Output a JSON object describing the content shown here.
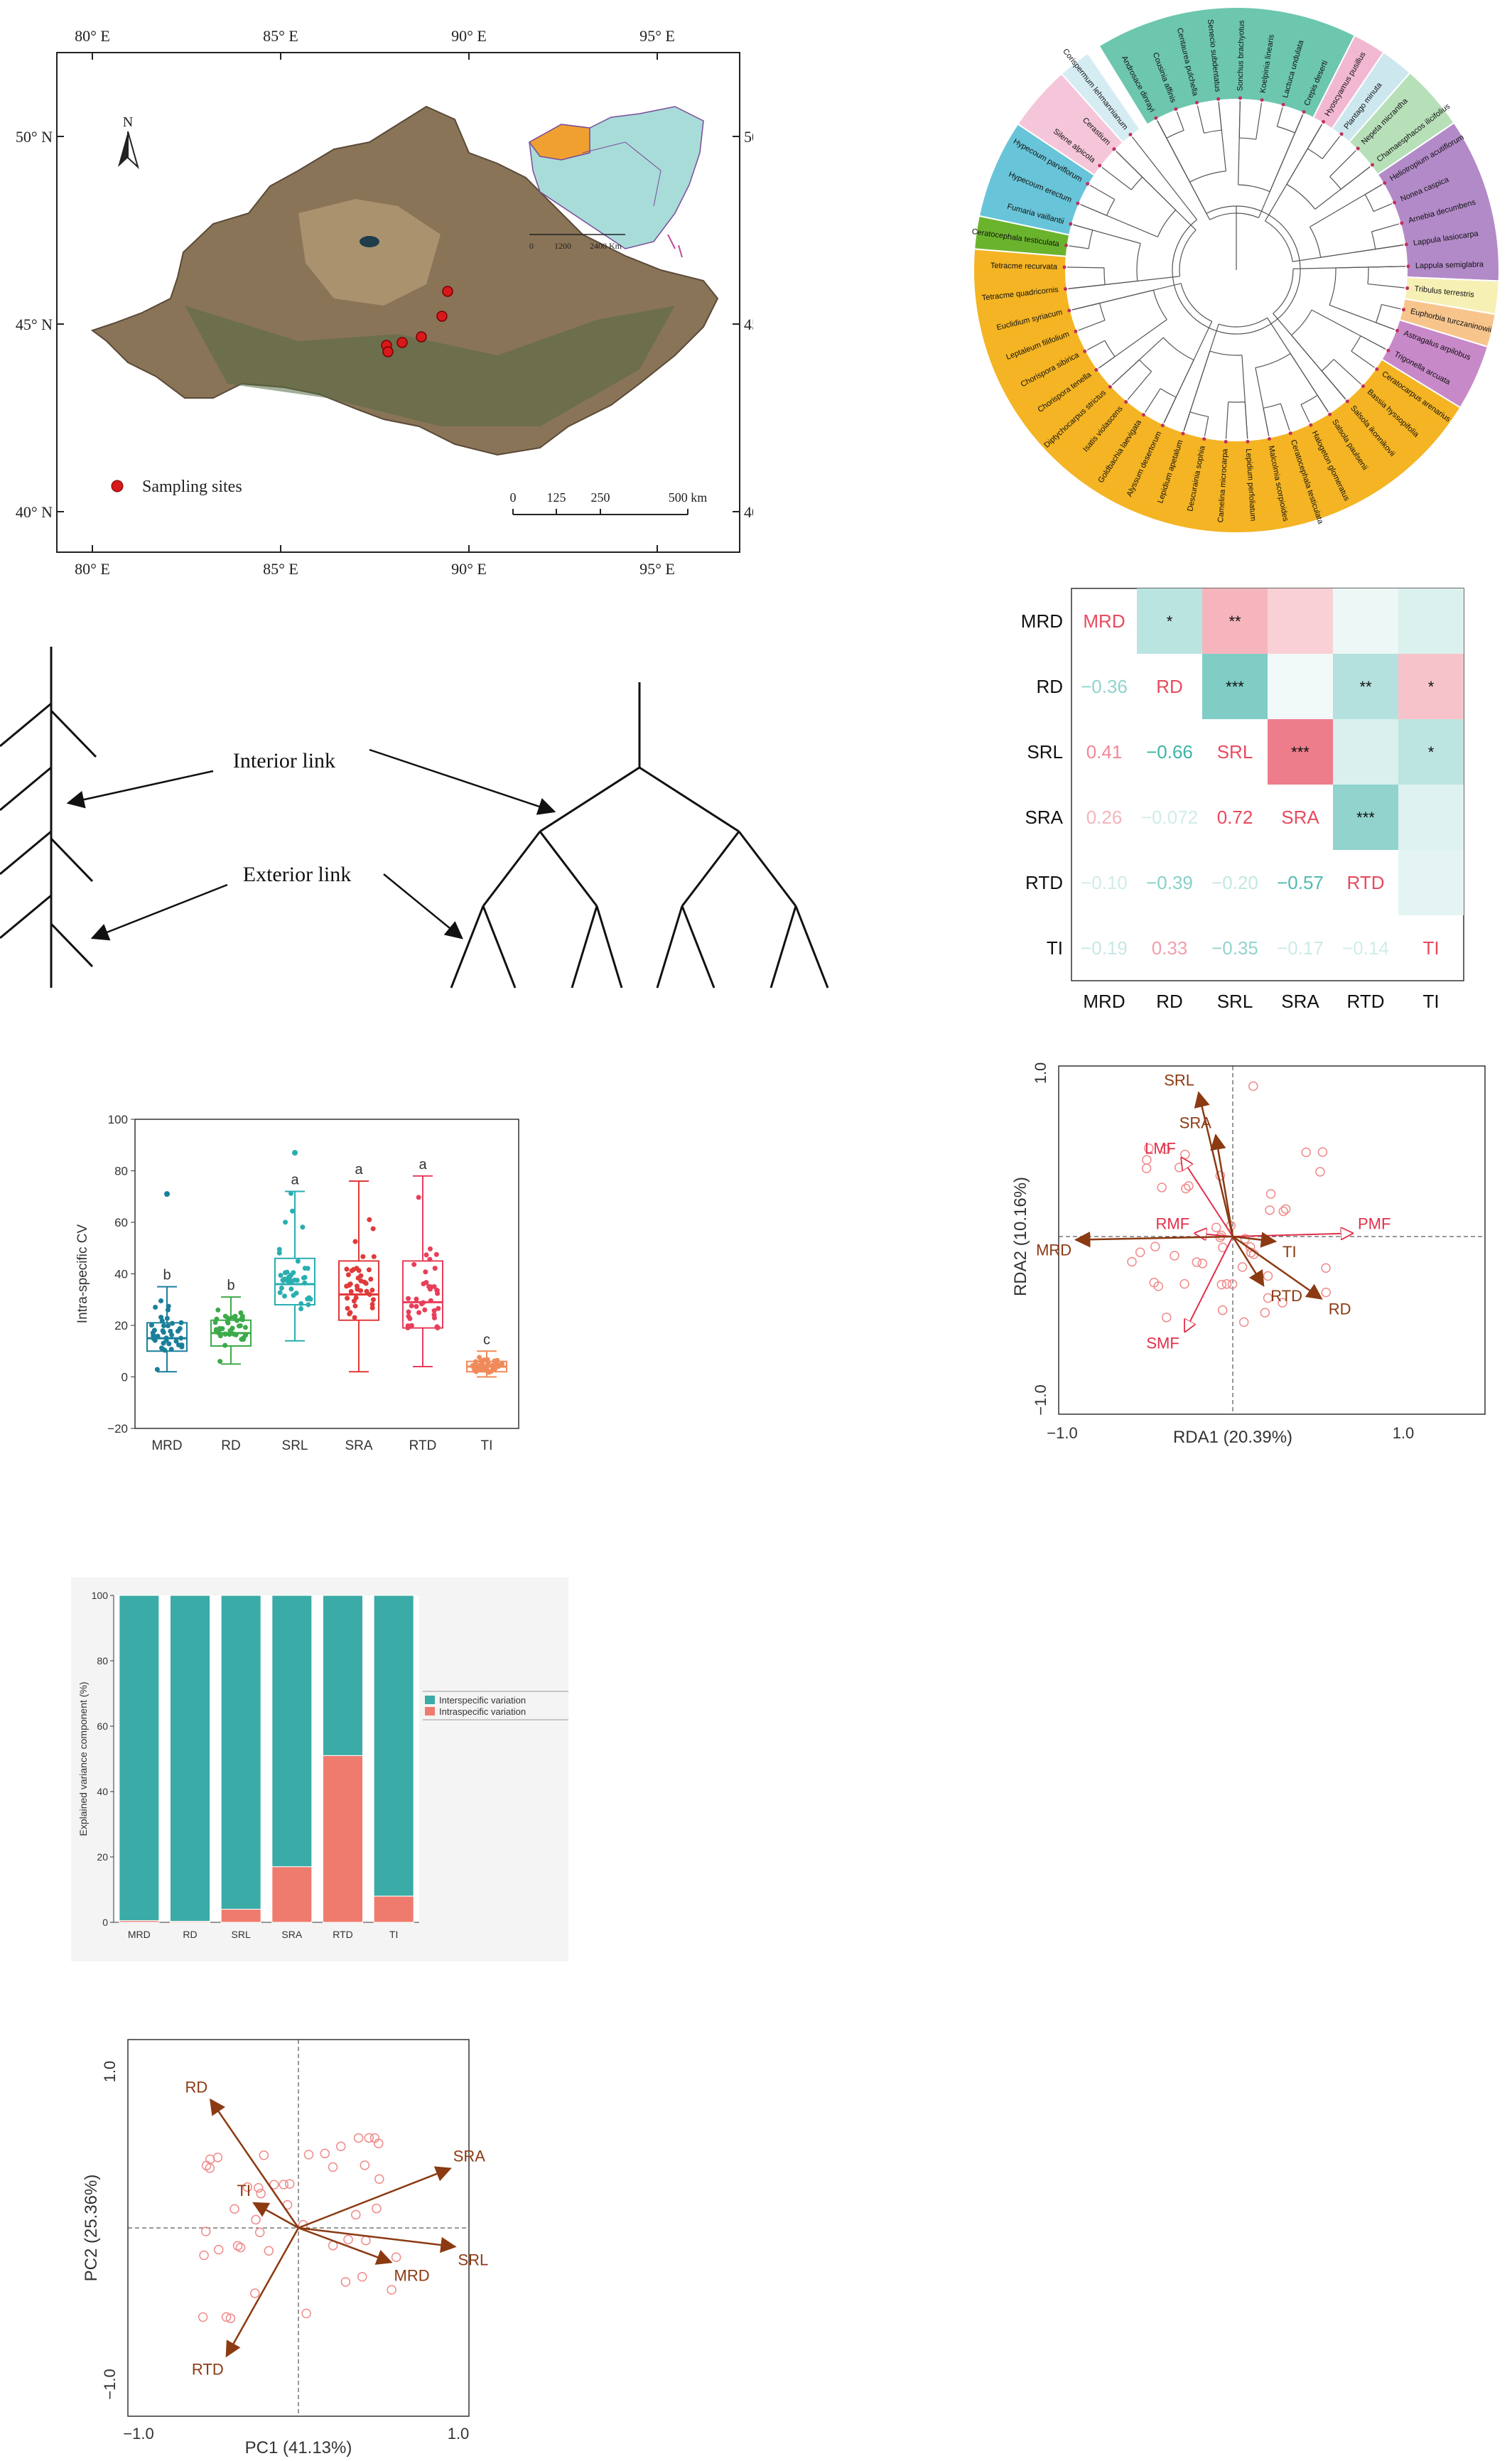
{
  "map": {
    "lon_labels": [
      "80° E",
      "85° E",
      "90° E",
      "95° E"
    ],
    "lat_labels": [
      "50° N",
      "45° N",
      "40° N"
    ],
    "north": "N",
    "legend": "Sampling sites",
    "scale_ticks": [
      "0",
      "125",
      "250",
      "500 km"
    ],
    "inset_scale": [
      "0",
      "1200",
      "2400 Km"
    ],
    "colors": {
      "frame": "#222222",
      "site": "#d7191c",
      "terrain": "#8a7458",
      "inset_region": "#f0a030",
      "inset_land": "#a8dcd8"
    }
  },
  "tree": {
    "groups": [
      {
        "color": "#6cc7ae",
        "species": [
          "Androsace dinrayi",
          "Cousinia affinis",
          "Centaurea pulchella",
          "Senecio subdentatus",
          "Sonchus brachyotus",
          "Koelpinia linearis",
          "Lactuca undulata",
          "Crepis deserti"
        ]
      },
      {
        "color": "#f2b8d2",
        "species": [
          "Hyoscyamus pusillus"
        ]
      },
      {
        "color": "#cde7ee",
        "species": [
          "Plantago minuta"
        ]
      },
      {
        "color": "#b7e0b9",
        "species": [
          "Nepeta micrantha",
          "Chamaesphacos ilicifolius"
        ]
      },
      {
        "color": "#b28ac8",
        "species": [
          "Heliotropium acutiflorum",
          "Nonea caspica",
          "Arnebia decumbens",
          "Lappula lasiocarpa",
          "Lappula semiglabra"
        ]
      },
      {
        "color": "#f7f0b5",
        "species": [
          "Tribulus terrestris"
        ]
      },
      {
        "color": "#f7c58c",
        "species": [
          "Euphorbia turczaninowii"
        ]
      },
      {
        "color": "#c889c9",
        "species": [
          "Astragalus arpilobus",
          "Trigonella arcuata"
        ]
      },
      {
        "color": "#f4b423",
        "species": [
          "Ceratocarpus arenarius",
          "Bassia hyssopifolia",
          "Salsola ikonnikovii",
          "Salsola paulsenii",
          "Halogeton glomeratus",
          "Ceratocephala testiculata",
          "Malcolmia scorpioides",
          "Lepidium perfoliatum",
          "Camelina microcarpa",
          "Descurainia sophia",
          "Lepidium apetalum",
          "Alyssum desertorum",
          "Goldbachia laevigata",
          "Isatis violascens",
          "Diptychocarpus strictus",
          "Chorispora tenella",
          "Chorispora sibirica",
          "Leptaleum filifolium",
          "Euclidium syriacum",
          "Tetracme quadricornis",
          "Tetracme recurvata"
        ]
      },
      {
        "color": "#6ab42d",
        "species": [
          "Ceratocephala testiculata"
        ]
      },
      {
        "color": "#68c4d8",
        "species": [
          "Fumaria vaillantii",
          "Hypecoum erectum",
          "Hypecoum parviflorum"
        ]
      },
      {
        "color": "#f5c6d9",
        "species": [
          "Silene alpicola",
          "Cerastium"
        ]
      },
      {
        "color": "#d6ecf3",
        "species": [
          "Corispermum lehmannianum"
        ]
      }
    ]
  },
  "diagram": {
    "interior": "Interior link",
    "exterior": "Exterior link"
  },
  "correlation": {
    "labels": [
      "MRD",
      "RD",
      "SRL",
      "SRA",
      "RTD",
      "TI"
    ],
    "lower": [
      [
        "",
        "",
        "",
        "",
        ""
      ],
      [
        "−0.36",
        "",
        "",
        "",
        ""
      ],
      [
        "0.41",
        "−0.66",
        "",
        "",
        ""
      ],
      [
        "0.26",
        "−0.072",
        "0.72",
        "",
        ""
      ],
      [
        "−0.10",
        "−0.39",
        "−0.20",
        "−0.57",
        ""
      ],
      [
        "−0.19",
        "0.33",
        "−0.35",
        "−0.17",
        "−0.14"
      ]
    ],
    "upper_values": [
      [
        null,
        -0.36,
        0.41,
        0.26,
        -0.1,
        -0.19
      ],
      [
        null,
        null,
        -0.66,
        -0.072,
        -0.39,
        0.33
      ],
      [
        null,
        null,
        null,
        0.72,
        -0.2,
        -0.35
      ],
      [
        null,
        null,
        null,
        null,
        -0.57,
        -0.17
      ],
      [
        null,
        null,
        null,
        null,
        null,
        -0.14
      ],
      [
        null,
        null,
        null,
        null,
        null,
        null
      ]
    ],
    "stars": [
      [
        "",
        "*",
        "**",
        "",
        "",
        ""
      ],
      [
        "",
        "",
        "***",
        "",
        "**",
        "*"
      ],
      [
        "",
        "",
        "",
        "***",
        "",
        "*"
      ],
      [
        "",
        "",
        "",
        "",
        "***",
        ""
      ],
      [
        "",
        "",
        "",
        "",
        "",
        ""
      ],
      [
        "",
        "",
        "",
        "",
        "",
        ""
      ]
    ],
    "colors": {
      "positive": "#e84a5f",
      "negative": "#3fb3a8"
    }
  },
  "rda": {
    "ylabel": "RDA2 (10.16%)",
    "xlabel": "RDA1 (20.39%)",
    "x_ticks": [
      "−1.0",
      "1.0"
    ],
    "y_ticks": [
      "1.0",
      "−1.0"
    ],
    "traits": [
      {
        "name": "SRL",
        "x": -0.2,
        "y": 0.88
      },
      {
        "name": "SRA",
        "x": -0.1,
        "y": 0.62
      },
      {
        "name": "MRD",
        "x": -0.92,
        "y": -0.02
      },
      {
        "name": "RTD",
        "x": 0.18,
        "y": -0.3
      },
      {
        "name": "RD",
        "x": 0.52,
        "y": -0.38
      },
      {
        "name": "TI",
        "x": 0.25,
        "y": -0.03
      }
    ],
    "env": [
      {
        "name": "LMF",
        "x": -0.3,
        "y": 0.48
      },
      {
        "name": "PMF",
        "x": 0.7,
        "y": 0.02
      },
      {
        "name": "RMF",
        "x": -0.22,
        "y": 0.02
      },
      {
        "name": "SMF",
        "x": -0.28,
        "y": -0.58
      }
    ]
  },
  "cv_chart": {
    "ylabel": "Intra-specific CV",
    "categories": [
      "MRD",
      "RD",
      "SRL",
      "SRA",
      "RTD",
      "TI"
    ],
    "letters": [
      "b",
      "b",
      "a",
      "a",
      "a",
      "c"
    ],
    "y_ticks": [
      "100",
      "80",
      "60",
      "40",
      "20",
      "0",
      "−20"
    ],
    "ylim": [
      -20,
      100
    ],
    "boxes": [
      {
        "min": 2,
        "q1": 10,
        "median": 15,
        "q3": 21,
        "max": 35,
        "outlier": 71,
        "color": "#1a7f9a"
      },
      {
        "min": 5,
        "q1": 12,
        "median": 17,
        "q3": 22,
        "max": 31,
        "outlier": null,
        "color": "#3daa4a"
      },
      {
        "min": 14,
        "q1": 28,
        "median": 36,
        "q3": 46,
        "max": 72,
        "outlier": 87,
        "color": "#2aaeb0"
      },
      {
        "min": 2,
        "q1": 22,
        "median": 32,
        "q3": 45,
        "max": 76,
        "outlier": null,
        "color": "#e03a3a"
      },
      {
        "min": 4,
        "q1": 19,
        "median": 29,
        "q3": 45,
        "max": 78,
        "outlier": null,
        "color": "#e83e5a"
      },
      {
        "min": 0,
        "q1": 2,
        "median": 4,
        "q3": 6,
        "max": 10,
        "outlier": null,
        "color": "#f08a5a"
      }
    ]
  },
  "variance": {
    "ylabel": "Explained variance component (%)",
    "categories": [
      "MRD",
      "RD",
      "SRL",
      "SRA",
      "RTD",
      "TI"
    ],
    "intra": [
      0.5,
      0.3,
      4,
      17,
      51,
      8
    ],
    "legend": [
      "Interspecific variation",
      "Intraspecific variation"
    ],
    "y_ticks": [
      "100",
      "80",
      "60",
      "40",
      "20",
      "0"
    ],
    "colors": {
      "inter": "#3aaba7",
      "intra": "#ef7b6e"
    }
  },
  "pca": {
    "ylabel": "PC2 (25.36%)",
    "xlabel": "PC1 (41.13%)",
    "x_ticks": [
      "−1.0",
      "1.0"
    ],
    "y_ticks": [
      "1.0",
      "−1.0"
    ],
    "loadings": [
      {
        "name": "RD",
        "x": -0.55,
        "y": 0.82
      },
      {
        "name": "SRA",
        "x": 0.95,
        "y": 0.38
      },
      {
        "name": "SRL",
        "x": 0.98,
        "y": -0.12
      },
      {
        "name": "MRD",
        "x": 0.58,
        "y": -0.22
      },
      {
        "name": "TI",
        "x": -0.28,
        "y": 0.16
      },
      {
        "name": "RTD",
        "x": -0.45,
        "y": -0.82
      }
    ]
  }
}
